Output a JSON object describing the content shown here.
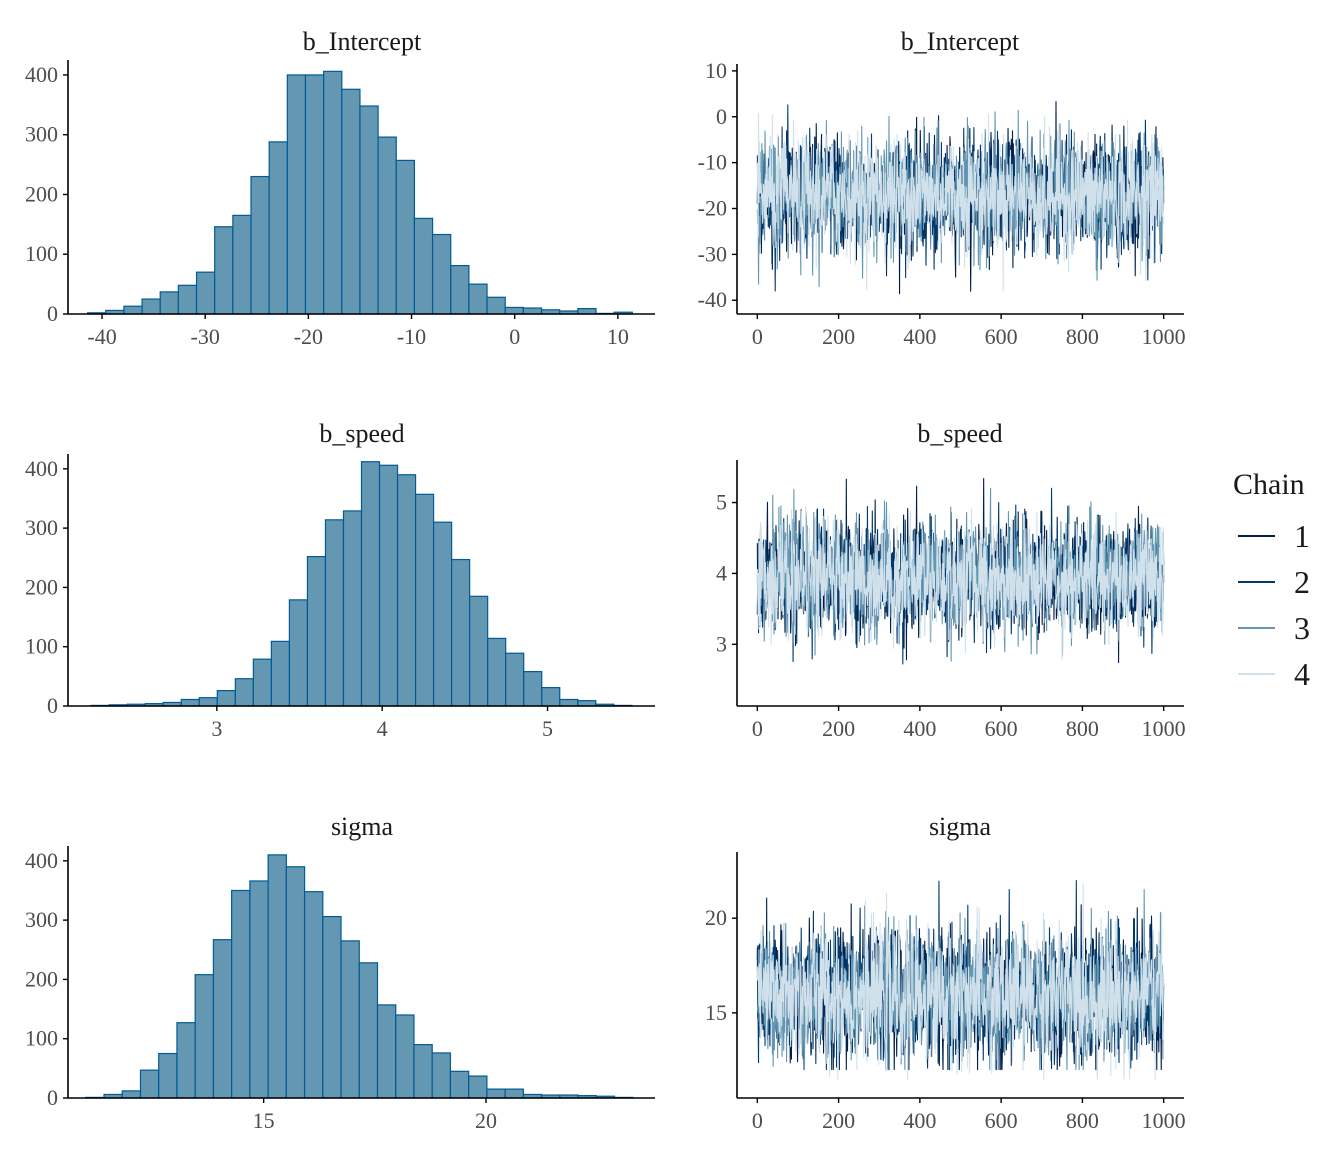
{
  "colors": {
    "hist_fill": "#6497b1",
    "hist_stroke": "#005b96",
    "axis": "#000000",
    "chains": [
      "#011f4b",
      "#03396c",
      "#6497b1",
      "#d1e1ec"
    ]
  },
  "legend": {
    "title": "Chain",
    "items": [
      "1",
      "2",
      "3",
      "4"
    ]
  },
  "chart_data": [
    {
      "type": "bar",
      "title": "b_Intercept",
      "xlabel": "",
      "ylabel": "",
      "x": {
        "range": [
          -43.3,
          13.6
        ],
        "ticks": [
          -40,
          -30,
          -20,
          -10,
          0,
          10
        ],
        "tick_labels": [
          "-40",
          "-30",
          "-20",
          "-10",
          "0",
          "10"
        ]
      },
      "y": {
        "range": [
          0,
          425
        ],
        "ticks": [
          0,
          100,
          200,
          300,
          400
        ],
        "tick_labels": [
          "0",
          "100",
          "200",
          "300",
          "400"
        ]
      },
      "bin_start": -41.4,
      "bin_width": 1.76,
      "values": [
        2,
        6,
        13,
        25,
        37,
        48,
        70,
        146,
        165,
        230,
        288,
        400,
        400,
        406,
        376,
        348,
        296,
        257,
        160,
        133,
        81,
        50,
        28,
        11,
        10,
        7,
        5,
        9,
        1,
        3
      ]
    },
    {
      "type": "line",
      "title": "b_Intercept",
      "xlabel": "",
      "ylabel": "",
      "x": {
        "range": [
          -50,
          1050
        ],
        "ticks": [
          0,
          200,
          400,
          600,
          800,
          1000
        ],
        "tick_labels": [
          "0",
          "200",
          "400",
          "600",
          "800",
          "1000"
        ]
      },
      "y": {
        "range": [
          -43,
          11.5
        ],
        "ticks": [
          -40,
          -30,
          -20,
          -10,
          0,
          10
        ],
        "tick_labels": [
          "-40",
          "-30",
          "-20",
          "-10",
          "0",
          "10"
        ]
      },
      "iterations": 1000,
      "chain_summary": [
        {
          "name": "1",
          "center": -17,
          "spread": 6.2,
          "min": -40,
          "max": 6
        },
        {
          "name": "2",
          "center": -17,
          "spread": 6.2,
          "min": -38,
          "max": 5
        },
        {
          "name": "3",
          "center": -17,
          "spread": 6.2,
          "min": -37,
          "max": 10
        },
        {
          "name": "4",
          "center": -17,
          "spread": 6.2,
          "min": -39,
          "max": 10
        }
      ]
    },
    {
      "type": "bar",
      "title": "b_speed",
      "xlabel": "",
      "ylabel": "",
      "x": {
        "range": [
          2.1,
          5.65
        ],
        "ticks": [
          3,
          4,
          5
        ],
        "tick_labels": [
          "3",
          "4",
          "5"
        ]
      },
      "y": {
        "range": [
          0,
          425
        ],
        "ticks": [
          0,
          100,
          200,
          300,
          400
        ],
        "tick_labels": [
          "0",
          "100",
          "200",
          "300",
          "400"
        ]
      },
      "bin_start": 2.24,
      "bin_width": 0.109,
      "values": [
        1,
        2,
        3,
        4,
        6,
        11,
        14,
        26,
        46,
        79,
        109,
        179,
        252,
        314,
        329,
        412,
        406,
        390,
        357,
        310,
        247,
        185,
        114,
        89,
        58,
        31,
        11,
        9,
        3,
        1
      ]
    },
    {
      "type": "line",
      "title": "b_speed",
      "xlabel": "",
      "ylabel": "",
      "x": {
        "range": [
          -50,
          1050
        ],
        "ticks": [
          0,
          200,
          400,
          600,
          800,
          1000
        ],
        "tick_labels": [
          "0",
          "200",
          "400",
          "600",
          "800",
          "1000"
        ]
      },
      "y": {
        "range": [
          2.13,
          5.6
        ],
        "ticks": [
          3,
          4,
          5
        ],
        "tick_labels": [
          "3",
          "4",
          "5"
        ]
      },
      "iterations": 1000,
      "chain_summary": [
        {
          "name": "1",
          "center": 3.94,
          "spread": 0.39,
          "min": 2.3,
          "max": 5.45
        },
        {
          "name": "2",
          "center": 3.94,
          "spread": 0.39,
          "min": 2.5,
          "max": 5.2
        },
        {
          "name": "3",
          "center": 3.94,
          "spread": 0.39,
          "min": 2.3,
          "max": 5.2
        },
        {
          "name": "4",
          "center": 3.94,
          "spread": 0.39,
          "min": 2.4,
          "max": 5.2
        }
      ]
    },
    {
      "type": "bar",
      "title": "sigma",
      "xlabel": "",
      "ylabel": "",
      "x": {
        "range": [
          10.6,
          23.8
        ],
        "ticks": [
          15,
          20
        ],
        "tick_labels": [
          "15",
          "20"
        ]
      },
      "y": {
        "range": [
          0,
          425
        ],
        "ticks": [
          0,
          100,
          200,
          300,
          400
        ],
        "tick_labels": [
          "0",
          "100",
          "200",
          "300",
          "400"
        ]
      },
      "bin_start": 11.0,
      "bin_width": 0.41,
      "values": [
        1,
        6,
        12,
        47,
        75,
        127,
        208,
        267,
        350,
        366,
        410,
        390,
        348,
        306,
        265,
        228,
        157,
        140,
        90,
        76,
        45,
        37,
        15,
        15,
        6,
        5,
        5,
        4,
        3,
        1
      ]
    },
    {
      "type": "line",
      "title": "sigma",
      "xlabel": "",
      "ylabel": "",
      "x": {
        "range": [
          -50,
          1050
        ],
        "ticks": [
          0,
          200,
          400,
          600,
          800,
          1000
        ],
        "tick_labels": [
          "0",
          "200",
          "400",
          "600",
          "800",
          "1000"
        ]
      },
      "y": {
        "range": [
          10.5,
          23.5
        ],
        "ticks": [
          15,
          20
        ],
        "tick_labels": [
          "15",
          "20"
        ]
      },
      "iterations": 1000,
      "chain_summary": [
        {
          "name": "1",
          "center": 15.9,
          "spread": 1.7,
          "min": 12,
          "max": 22.6
        },
        {
          "name": "2",
          "center": 15.9,
          "spread": 1.7,
          "min": 12,
          "max": 22
        },
        {
          "name": "3",
          "center": 15.9,
          "spread": 1.7,
          "min": 12,
          "max": 22.9
        },
        {
          "name": "4",
          "center": 15.9,
          "spread": 1.7,
          "min": 11.5,
          "max": 21.8
        }
      ]
    }
  ]
}
